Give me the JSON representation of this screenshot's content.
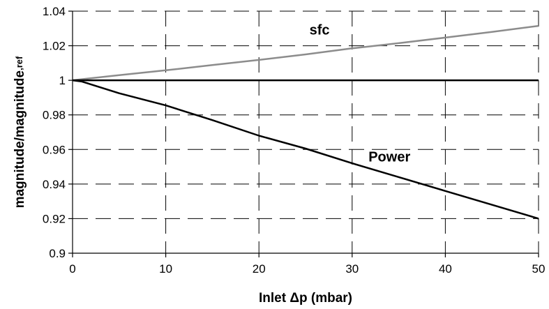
{
  "chart_data": {
    "type": "line",
    "title": "",
    "xlabel": "Inlet Δp (mbar)",
    "ylabel_main": "magnitude/magnitude",
    "ylabel_sub": ",ref",
    "xlim": [
      0,
      50
    ],
    "ylim": [
      0.9,
      1.04
    ],
    "x_ticks": [
      0,
      10,
      20,
      30,
      40,
      50
    ],
    "x_tick_labels": [
      "0",
      "10",
      "20",
      "30",
      "40",
      "50"
    ],
    "y_ticks": [
      0.9,
      0.92,
      0.94,
      0.96,
      0.98,
      1.0,
      1.02,
      1.04
    ],
    "y_tick_labels": [
      "0.9",
      "0.92",
      "0.94",
      "0.96",
      "0.98",
      "1",
      "1.02",
      "1.04"
    ],
    "grid": {
      "x": true,
      "y": true,
      "style": "dashed"
    },
    "series": [
      {
        "name": "sfc",
        "color": "#8c8c8c",
        "x": [
          0,
          5,
          10,
          15,
          20,
          25,
          30,
          35,
          40,
          45,
          50
        ],
        "y": [
          1.0,
          1.003,
          1.0058,
          1.0088,
          1.0118,
          1.015,
          1.0185,
          1.0215,
          1.0247,
          1.028,
          1.0315
        ]
      },
      {
        "name": "",
        "color": "#000000",
        "x": [
          0,
          50
        ],
        "y": [
          1.0,
          1.0
        ]
      },
      {
        "name": "Power",
        "color": "#000000",
        "x": [
          0,
          1,
          5,
          10,
          15,
          20,
          25,
          30,
          35,
          40,
          45,
          50
        ],
        "y": [
          1.0,
          0.9993,
          0.9925,
          0.9855,
          0.977,
          0.968,
          0.9605,
          0.952,
          0.944,
          0.936,
          0.928,
          0.92
        ]
      }
    ],
    "annotations": [
      {
        "text": "sfc",
        "x": 26.5,
        "y": 1.0265
      },
      {
        "text": "Power",
        "x": 34,
        "y": 0.953
      }
    ]
  }
}
